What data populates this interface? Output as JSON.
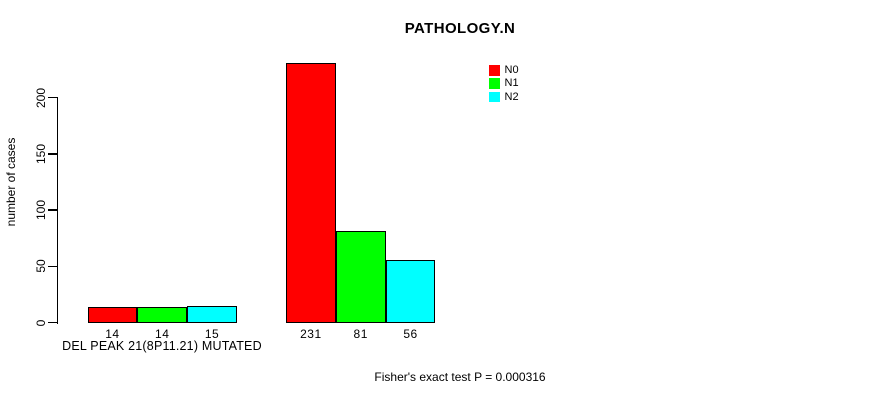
{
  "chart_data": {
    "type": "bar",
    "title": "PATHOLOGY.N",
    "ylabel": "number of cases",
    "xlabel": "DEL PEAK 21(8P11.21) MUTATED",
    "annotation": "Fisher's exact test P = 0.000316",
    "categories": [
      "DEL PEAK 21(8P11.21) MUTATED",
      ""
    ],
    "series": [
      {
        "name": "N0",
        "color": "#ff0000",
        "values": [
          14,
          231
        ]
      },
      {
        "name": "N1",
        "color": "#00ff00",
        "values": [
          14,
          81
        ]
      },
      {
        "name": "N2",
        "color": "#00ffff",
        "values": [
          15,
          56
        ]
      }
    ],
    "bar_labels": [
      [
        "14",
        "14",
        "15"
      ],
      [
        "231",
        "81",
        "56"
      ]
    ],
    "yticks": [
      0,
      50,
      100,
      150,
      200
    ],
    "ylim": [
      0,
      240
    ],
    "grid": false,
    "legend_position": "top-right-inside",
    "axis_color": "#000000",
    "bar_border_color": "#000000"
  }
}
